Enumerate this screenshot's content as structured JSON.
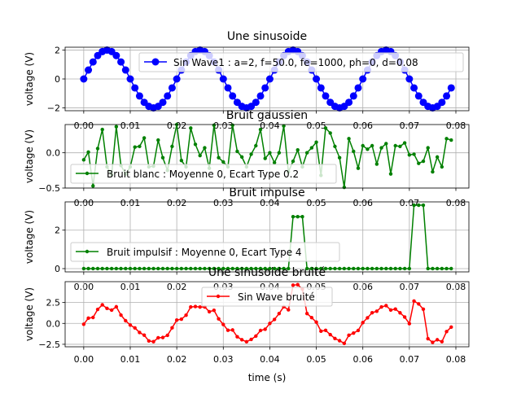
{
  "chart_data": [
    {
      "type": "line",
      "title": "Une sinusoide",
      "xlabel": "",
      "ylabel": "voltage (V)",
      "xlim": [
        -0.004,
        0.0828
      ],
      "ylim": [
        -2.2,
        2.2
      ],
      "xticks": [
        "0.00",
        "0.01",
        "0.02",
        "0.03",
        "0.04",
        "0.05",
        "0.06",
        "0.07",
        "0.08"
      ],
      "yticks": [
        "2",
        "0",
        "−2"
      ],
      "legend": "upper right",
      "grid": true,
      "color": "#0000ff",
      "marker": "circle-large",
      "series": [
        {
          "name": "Sin Wave1 : a=2, f=50.0, fe=1000, ph=0, d=0.08",
          "x": [
            0.0,
            0.001,
            0.002,
            0.003,
            0.004,
            0.005,
            0.006,
            0.007,
            0.008,
            0.009,
            0.01,
            0.011,
            0.012,
            0.013,
            0.014,
            0.015,
            0.016,
            0.017,
            0.018,
            0.019,
            0.02,
            0.021,
            0.022,
            0.023,
            0.024,
            0.025,
            0.026,
            0.027,
            0.028,
            0.029,
            0.03,
            0.031,
            0.032,
            0.033,
            0.034,
            0.035,
            0.036,
            0.037,
            0.038,
            0.039,
            0.04,
            0.041,
            0.042,
            0.043,
            0.044,
            0.045,
            0.046,
            0.047,
            0.048,
            0.049,
            0.05,
            0.051,
            0.052,
            0.053,
            0.054,
            0.055,
            0.056,
            0.057,
            0.058,
            0.059,
            0.06,
            0.061,
            0.062,
            0.063,
            0.064,
            0.065,
            0.066,
            0.067,
            0.068,
            0.069,
            0.07,
            0.071,
            0.072,
            0.073,
            0.074,
            0.075,
            0.076,
            0.077,
            0.078,
            0.079
          ],
          "values": [
            0.0,
            0.62,
            1.18,
            1.62,
            1.9,
            2.0,
            1.9,
            1.62,
            1.18,
            0.62,
            0.0,
            -0.62,
            -1.18,
            -1.62,
            -1.9,
            -2.0,
            -1.9,
            -1.62,
            -1.18,
            -0.62,
            0.0,
            0.62,
            1.18,
            1.62,
            1.9,
            2.0,
            1.9,
            1.62,
            1.18,
            0.62,
            0.0,
            -0.62,
            -1.18,
            -1.62,
            -1.9,
            -2.0,
            -1.9,
            -1.62,
            -1.18,
            -0.62,
            0.0,
            0.62,
            1.18,
            1.62,
            1.9,
            2.0,
            1.9,
            1.62,
            1.18,
            0.62,
            0.0,
            -0.62,
            -1.18,
            -1.62,
            -1.9,
            -2.0,
            -1.9,
            -1.62,
            -1.18,
            -0.62,
            0.0,
            0.62,
            1.18,
            1.62,
            1.9,
            2.0,
            1.9,
            1.62,
            1.18,
            0.62,
            0.0,
            -0.62,
            -1.18,
            -1.62,
            -1.9,
            -2.0,
            -1.9,
            -1.62,
            -1.18,
            -0.62
          ]
        }
      ]
    },
    {
      "type": "line",
      "title": "Bruit gaussien",
      "xlabel": "",
      "ylabel": "voltage (V)",
      "xlim": [
        -0.004,
        0.0828
      ],
      "ylim": [
        -0.5,
        0.4
      ],
      "xticks": [
        "0.00",
        "0.01",
        "0.02",
        "0.03",
        "0.04",
        "0.05",
        "0.06",
        "0.07",
        "0.08"
      ],
      "yticks": [
        "0.0",
        "−0.5"
      ],
      "legend": "lower left",
      "grid": true,
      "color": "#008000",
      "marker": "circle-small",
      "series": [
        {
          "name": "Bruit blanc : Moyenne 0, Ecart Type 0.2",
          "x": [
            0.0,
            0.001,
            0.002,
            0.003,
            0.004,
            0.005,
            0.006,
            0.007,
            0.008,
            0.009,
            0.01,
            0.011,
            0.012,
            0.013,
            0.014,
            0.015,
            0.016,
            0.017,
            0.018,
            0.019,
            0.02,
            0.021,
            0.022,
            0.023,
            0.024,
            0.025,
            0.026,
            0.027,
            0.028,
            0.029,
            0.03,
            0.031,
            0.032,
            0.033,
            0.034,
            0.035,
            0.036,
            0.037,
            0.038,
            0.039,
            0.04,
            0.041,
            0.042,
            0.043,
            0.044,
            0.045,
            0.046,
            0.047,
            0.048,
            0.049,
            0.05,
            0.051,
            0.052,
            0.053,
            0.054,
            0.055,
            0.056,
            0.057,
            0.058,
            0.059,
            0.06,
            0.061,
            0.062,
            0.063,
            0.064,
            0.065,
            0.066,
            0.067,
            0.068,
            0.069,
            0.07,
            0.071,
            0.072,
            0.073,
            0.074,
            0.075,
            0.076,
            0.077,
            0.078,
            0.079
          ],
          "values": [
            -0.1,
            0.01,
            -0.47,
            0.06,
            0.33,
            -0.2,
            -0.31,
            0.37,
            -0.18,
            -0.3,
            -0.2,
            0.08,
            0.09,
            0.21,
            -0.2,
            -0.19,
            0.18,
            -0.07,
            -0.25,
            0.09,
            0.4,
            -0.11,
            -0.2,
            0.35,
            0.12,
            -0.04,
            0.07,
            -0.22,
            0.39,
            -0.07,
            -0.13,
            -0.2,
            0.39,
            0.02,
            -0.06,
            -0.2,
            -0.02,
            0.1,
            0.33,
            -0.08,
            0.0,
            -0.14,
            0.0,
            0.38,
            -0.27,
            -0.12,
            0.04,
            -0.2,
            0.0,
            0.07,
            0.15,
            -0.32,
            0.35,
            0.28,
            0.09,
            -0.07,
            -0.49,
            0.2,
            0.02,
            -0.22,
            0.1,
            0.05,
            0.1,
            -0.16,
            0.07,
            0.13,
            -0.3,
            0.1,
            0.09,
            0.14,
            -0.03,
            -0.02,
            -0.15,
            -0.12,
            0.07,
            -0.27,
            -0.06,
            -0.2,
            0.2,
            0.18
          ]
        }
      ]
    },
    {
      "type": "line",
      "title": "Bruit impulse",
      "xlabel": "",
      "ylabel": "voltage (V)",
      "xlim": [
        -0.004,
        0.0828
      ],
      "ylim": [
        -0.17,
        3.47
      ],
      "xticks": [
        "0.00",
        "0.01",
        "0.02",
        "0.03",
        "0.04",
        "0.05",
        "0.06",
        "0.07",
        "0.08"
      ],
      "yticks": [
        "2",
        "0"
      ],
      "legend": "lower left",
      "grid": true,
      "color": "#008000",
      "marker": "circle-small",
      "series": [
        {
          "name": "Bruit impulsif : Moyenne 0, Ecart Type 4",
          "x": [
            0.0,
            0.001,
            0.002,
            0.003,
            0.004,
            0.005,
            0.006,
            0.007,
            0.008,
            0.009,
            0.01,
            0.011,
            0.012,
            0.013,
            0.014,
            0.015,
            0.016,
            0.017,
            0.018,
            0.019,
            0.02,
            0.021,
            0.022,
            0.023,
            0.024,
            0.025,
            0.026,
            0.027,
            0.028,
            0.029,
            0.03,
            0.031,
            0.032,
            0.033,
            0.034,
            0.035,
            0.036,
            0.037,
            0.038,
            0.039,
            0.04,
            0.041,
            0.042,
            0.043,
            0.044,
            0.045,
            0.046,
            0.047,
            0.048,
            0.049,
            0.05,
            0.051,
            0.052,
            0.053,
            0.054,
            0.055,
            0.056,
            0.057,
            0.058,
            0.059,
            0.06,
            0.061,
            0.062,
            0.063,
            0.064,
            0.065,
            0.066,
            0.067,
            0.068,
            0.069,
            0.07,
            0.071,
            0.072,
            0.073,
            0.074,
            0.075,
            0.076,
            0.077,
            0.078,
            0.079
          ],
          "values": [
            0,
            0,
            0,
            0,
            0,
            0,
            0,
            0,
            0,
            0,
            0,
            0,
            0,
            0,
            0,
            0,
            0,
            0,
            0,
            0,
            0,
            0,
            0,
            0,
            0,
            0,
            0,
            0,
            0,
            0,
            0,
            0,
            0,
            0,
            0,
            0,
            0,
            0,
            0,
            0,
            0,
            0,
            0,
            0,
            0,
            2.7,
            2.7,
            2.7,
            0,
            0,
            0,
            0,
            0,
            0,
            0,
            0,
            0,
            0,
            0,
            0,
            0,
            0,
            0,
            0,
            0,
            0,
            0,
            0,
            0,
            0,
            0,
            3.3,
            3.3,
            3.3,
            0,
            0,
            0,
            0,
            0,
            0
          ]
        }
      ]
    },
    {
      "type": "line",
      "title": "Une sinusoide bruité",
      "xlabel": "time (s)",
      "ylabel": "voltage (V)",
      "xlim": [
        -0.004,
        0.0828
      ],
      "ylim": [
        -2.8,
        5.0
      ],
      "xticks": [
        "0.00",
        "0.01",
        "0.02",
        "0.03",
        "0.04",
        "0.05",
        "0.06",
        "0.07",
        "0.08"
      ],
      "yticks": [
        "2.5",
        "0.0",
        "−2.5"
      ],
      "legend": "upper center",
      "grid": true,
      "color": "#ff0000",
      "marker": "circle-small",
      "series": [
        {
          "name": "Sin Wave bruité",
          "x": [
            0.0,
            0.001,
            0.002,
            0.003,
            0.004,
            0.005,
            0.006,
            0.007,
            0.008,
            0.009,
            0.01,
            0.011,
            0.012,
            0.013,
            0.014,
            0.015,
            0.016,
            0.017,
            0.018,
            0.019,
            0.02,
            0.021,
            0.022,
            0.023,
            0.024,
            0.025,
            0.026,
            0.027,
            0.028,
            0.029,
            0.03,
            0.031,
            0.032,
            0.033,
            0.034,
            0.035,
            0.036,
            0.037,
            0.038,
            0.039,
            0.04,
            0.041,
            0.042,
            0.043,
            0.044,
            0.045,
            0.046,
            0.047,
            0.048,
            0.049,
            0.05,
            0.051,
            0.052,
            0.053,
            0.054,
            0.055,
            0.056,
            0.057,
            0.058,
            0.059,
            0.06,
            0.061,
            0.062,
            0.063,
            0.064,
            0.065,
            0.066,
            0.067,
            0.068,
            0.069,
            0.07,
            0.071,
            0.072,
            0.073,
            0.074,
            0.075,
            0.076,
            0.077,
            0.078,
            0.079
          ],
          "values": [
            -0.1,
            0.63,
            0.71,
            1.68,
            2.23,
            1.8,
            1.59,
            1.99,
            1.0,
            0.32,
            -0.2,
            -0.54,
            -1.09,
            -1.41,
            -2.1,
            -2.19,
            -1.72,
            -1.69,
            -1.43,
            -0.53,
            0.4,
            0.51,
            0.98,
            1.97,
            2.02,
            1.96,
            1.97,
            1.4,
            1.57,
            0.55,
            -0.13,
            -0.82,
            -0.79,
            -1.6,
            -1.96,
            -2.2,
            -1.92,
            -1.52,
            -0.85,
            -0.7,
            0.0,
            0.47,
            1.18,
            2.0,
            1.63,
            4.58,
            4.64,
            4.12,
            1.18,
            0.69,
            0.15,
            -0.93,
            -0.83,
            -1.34,
            -1.81,
            -2.07,
            -2.39,
            -1.42,
            -1.16,
            -0.84,
            0.1,
            0.67,
            1.28,
            1.46,
            1.97,
            2.13,
            1.6,
            1.72,
            1.27,
            0.76,
            -0.03,
            2.68,
            2.33,
            1.7,
            -1.83,
            -2.27,
            -1.96,
            -2.18,
            -0.98,
            -0.44
          ]
        }
      ]
    }
  ]
}
